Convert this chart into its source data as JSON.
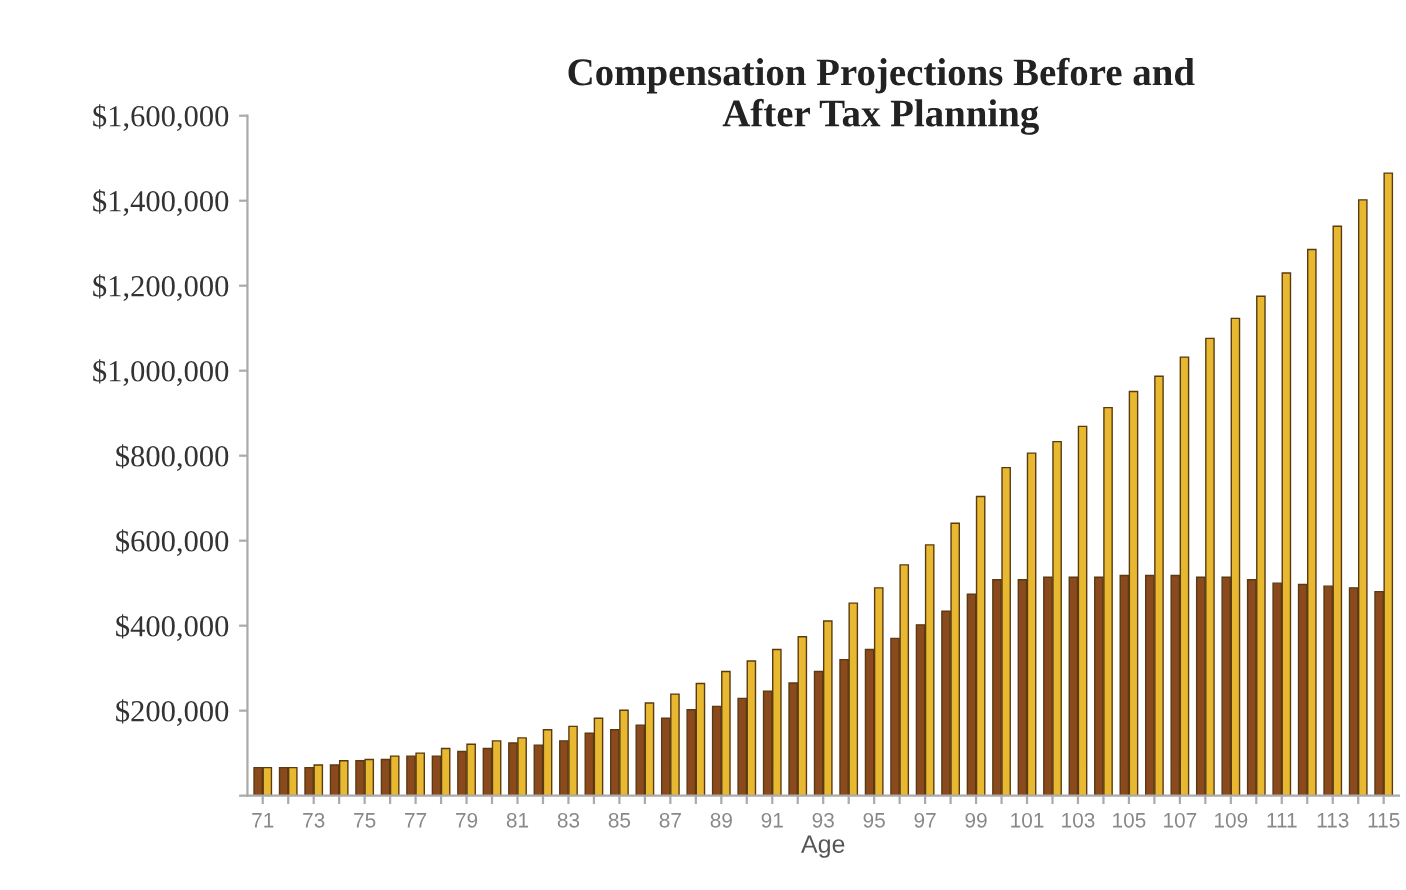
{
  "chart_data": {
    "type": "bar",
    "title": "Compensation Projections Before and\nAfter Tax Planning",
    "xlabel": "Age",
    "categories": [
      "71",
      null,
      "73",
      null,
      "75",
      null,
      "77",
      null,
      "79",
      null,
      "81",
      null,
      "83",
      null,
      "85",
      null,
      "87",
      null,
      "89",
      null,
      "91",
      null,
      "93",
      null,
      "95",
      null,
      "97",
      null,
      "99",
      null,
      "101",
      null,
      "103",
      null,
      "105",
      null,
      "107",
      null,
      "109",
      null,
      "111",
      null,
      "113",
      null,
      "115"
    ],
    "series": [
      {
        "color": "#8b4a1e",
        "values": [
          66000,
          66000,
          66000,
          72000,
          82000,
          85000,
          93000,
          93000,
          104000,
          111000,
          124000,
          119000,
          129000,
          147000,
          155000,
          166000,
          182000,
          202000,
          210000,
          229000,
          246000,
          265000,
          292000,
          320000,
          344000,
          370000,
          402000,
          434000,
          474000,
          508000,
          508000,
          514000,
          514000,
          514000,
          518000,
          518000,
          518000,
          514000,
          514000,
          508000,
          500000,
          497000,
          493000,
          489000,
          480000
        ]
      },
      {
        "color": "#e8b830",
        "values": [
          66000,
          66000,
          72000,
          82000,
          85000,
          93000,
          100000,
          111000,
          121000,
          129000,
          136000,
          155000,
          163000,
          182000,
          201000,
          218000,
          239000,
          264000,
          292000,
          317000,
          344000,
          374000,
          411000,
          453000,
          489000,
          543000,
          590000,
          641000,
          704000,
          772000,
          806000,
          833000,
          869000,
          913000,
          951000,
          987000,
          1032000,
          1076000,
          1123000,
          1175000,
          1230000,
          1285000,
          1340000,
          1402000,
          1465000
        ]
      }
    ],
    "ylim": [
      0,
      1600000
    ],
    "yticks": [
      {
        "value": 0,
        "label": null
      },
      {
        "value": 200000,
        "label": "$200,000"
      },
      {
        "value": 400000,
        "label": "$400,000"
      },
      {
        "value": 600000,
        "label": "$600,000"
      },
      {
        "value": 800000,
        "label": "$800,000"
      },
      {
        "value": 1000000,
        "label": "$1,000,000"
      },
      {
        "value": 1200000,
        "label": "$1,200,000"
      },
      {
        "value": 1400000,
        "label": "$1,400,000"
      },
      {
        "value": 1600000,
        "label": "$1,600,000"
      }
    ],
    "grid": false
  }
}
